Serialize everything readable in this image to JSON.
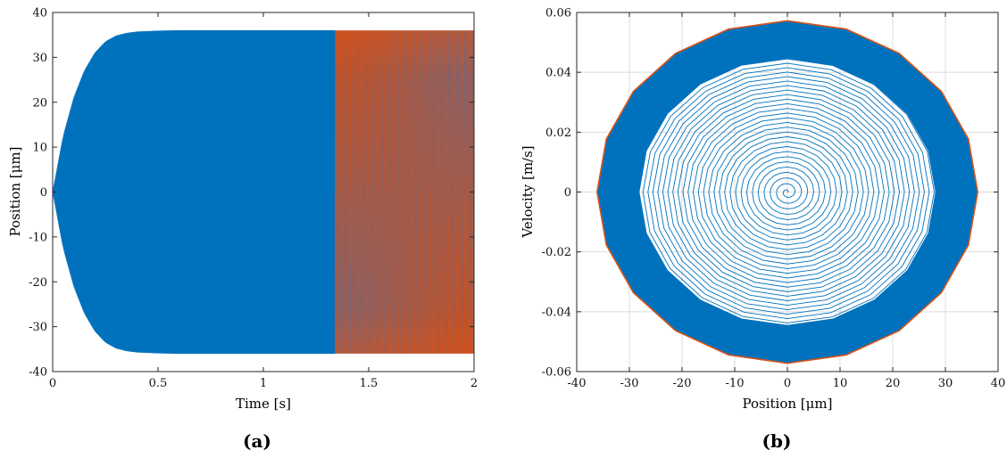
{
  "chart_data": [
    {
      "type": "line",
      "caption": "(a)",
      "xlabel": "Time [s]",
      "ylabel": "Position [μm]",
      "xlim": [
        0,
        2
      ],
      "ylim": [
        -40,
        40
      ],
      "xticks": [
        0,
        0.5,
        1,
        1.5,
        2
      ],
      "xtick_labels": [
        "0",
        "0.5",
        "1",
        "1.5",
        "2"
      ],
      "yticks": [
        -40,
        -30,
        -20,
        -10,
        0,
        10,
        20,
        30,
        40
      ],
      "ytick_labels": [
        "-40",
        "-30",
        "-20",
        "-10",
        "0",
        "10",
        "20",
        "30",
        "40"
      ],
      "grid": false,
      "series": [
        {
          "color": "#0072BD",
          "t_range": [
            0,
            1.34
          ],
          "envelope": {
            "t": [
              0,
              0.05,
              0.1,
              0.15,
              0.2,
              0.25,
              0.3,
              0.35,
              0.4,
              0.5,
              0.6,
              0.8,
              1.0,
              1.34
            ],
            "amplitude": [
              0,
              12.5,
              21.0,
              27.0,
              31.0,
              33.5,
              34.8,
              35.4,
              35.7,
              35.9,
              36.0,
              36.0,
              36.0,
              36.0
            ]
          }
        },
        {
          "color": "#D95319",
          "t_range": [
            1.34,
            2.0
          ],
          "amplitude": 36.0
        }
      ]
    },
    {
      "type": "line",
      "caption": "(b)",
      "xlabel": "Position [μm]",
      "ylabel": "Velocity [m/s]",
      "xlim": [
        -40,
        40
      ],
      "ylim": [
        -0.06,
        0.06
      ],
      "xticks": [
        -40,
        -30,
        -20,
        -10,
        0,
        10,
        20,
        30,
        40
      ],
      "xtick_labels": [
        "-40",
        "-30",
        "-20",
        "-10",
        "0",
        "10",
        "20",
        "30",
        "40"
      ],
      "yticks": [
        -0.06,
        -0.04,
        -0.02,
        0,
        0.02,
        0.04,
        0.06
      ],
      "ytick_labels": [
        "-0.06",
        "-0.04",
        "-0.02",
        "0",
        "0.02",
        "0.04",
        "0.06"
      ],
      "grid": true,
      "series": [
        {
          "color": "#0072BD",
          "shape": "spiral",
          "max_position": 36.0,
          "max_velocity": 0.057
        },
        {
          "color": "#D95319",
          "shape": "limit-cycle",
          "position_amplitude": 36.0,
          "velocity_amplitude": 0.057
        }
      ]
    }
  ]
}
